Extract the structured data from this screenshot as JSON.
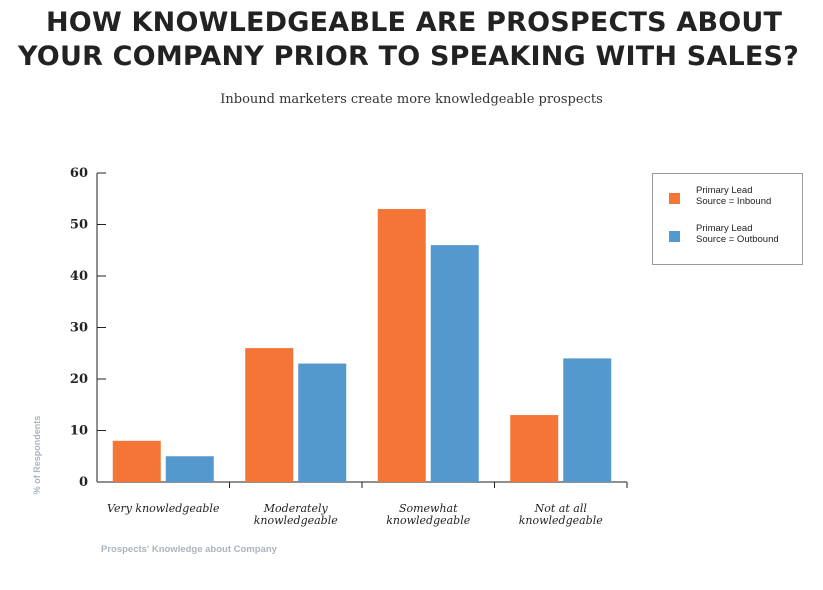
{
  "header": {
    "title_line1": "HOW KNOWLEDGEABLE ARE PROSPECTS ABOUT",
    "title_line2": "YOUR COMPANY PRIOR TO SPEAKING WITH SALES?",
    "subtitle": "Inbound marketers create more knowledgeable prospects"
  },
  "chart_data": {
    "type": "bar",
    "title": "HOW KNOWLEDGEABLE ARE PROSPECTS ABOUT YOUR COMPANY PRIOR TO SPEAKING WITH SALES?",
    "subtitle": "Inbound marketers create more knowledgeable prospects",
    "xlabel": "Prospects' Knowledge about Company",
    "ylabel": "% of Respondents",
    "ylim": [
      0,
      60
    ],
    "yticks": [
      0,
      10,
      20,
      30,
      40,
      50,
      60
    ],
    "categories": [
      [
        "Very knowledgeable"
      ],
      [
        "Moderately",
        "knowledgeable"
      ],
      [
        "Somewhat",
        "knowledgeable"
      ],
      [
        "Not at all",
        "knowledgeable"
      ]
    ],
    "series": [
      {
        "name": [
          "Primary Lead",
          "Source = Inbound"
        ],
        "color": "#f47536",
        "values": [
          8,
          26,
          53,
          13
        ]
      },
      {
        "name": [
          "Primary Lead",
          "Source = Outbound"
        ],
        "color": "#5499ce",
        "values": [
          5,
          23,
          46,
          24
        ]
      }
    ],
    "grid": false,
    "legend_position": "top-right"
  }
}
